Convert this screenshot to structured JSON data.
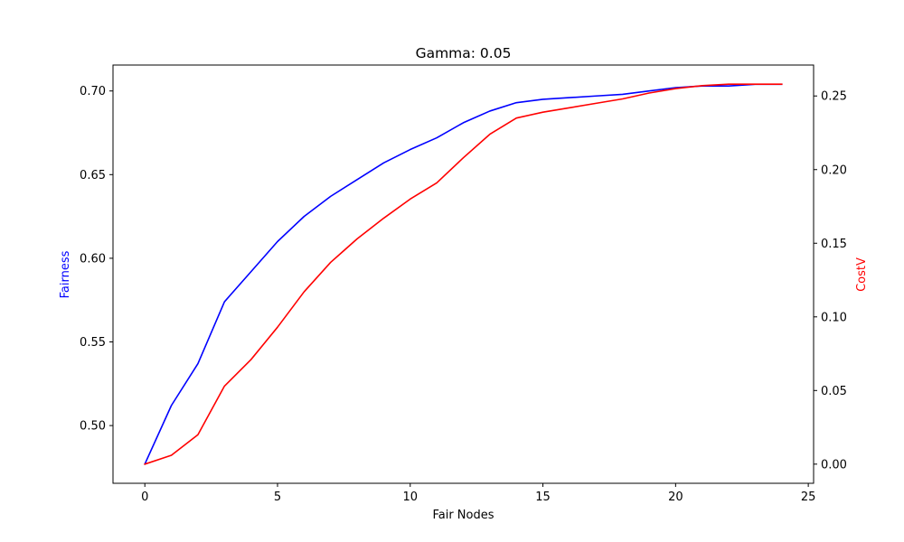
{
  "chart_data": {
    "type": "line",
    "title": "Gamma: 0.05",
    "xlabel": "Fair Nodes",
    "ylabel_left": "Fairness",
    "ylabel_right": "CostV",
    "xlim": [
      -1.2,
      25.2
    ],
    "ylim_left": [
      0.4655,
      0.7155
    ],
    "ylim_right": [
      -0.013,
      0.271
    ],
    "x_ticks": [
      0,
      5,
      10,
      15,
      20,
      25
    ],
    "y_ticks_left": [
      0.5,
      0.55,
      0.6,
      0.65,
      0.7
    ],
    "y_ticks_right": [
      0.0,
      0.05,
      0.1,
      0.15,
      0.2,
      0.25
    ],
    "x_tick_labels": [
      "0",
      "5",
      "10",
      "15",
      "20",
      "25"
    ],
    "y_tick_labels_left": [
      "0.50",
      "0.55",
      "0.60",
      "0.65",
      "0.70"
    ],
    "y_tick_labels_right": [
      "0.00",
      "0.05",
      "0.10",
      "0.15",
      "0.20",
      "0.25"
    ],
    "grid": false,
    "x": [
      0,
      1,
      2,
      3,
      4,
      5,
      6,
      7,
      8,
      9,
      10,
      11,
      12,
      13,
      14,
      15,
      16,
      17,
      18,
      19,
      20,
      21,
      22,
      23,
      24
    ],
    "series": [
      {
        "name": "Fairness",
        "axis": "left",
        "color": "#0000ff",
        "values": [
          0.477,
          0.512,
          0.537,
          0.574,
          0.592,
          0.61,
          0.625,
          0.637,
          0.647,
          0.657,
          0.665,
          0.672,
          0.681,
          0.688,
          0.693,
          0.695,
          0.696,
          0.697,
          0.698,
          0.7,
          0.702,
          0.703,
          0.703,
          0.704,
          0.704
        ]
      },
      {
        "name": "CostV",
        "axis": "right",
        "color": "#ff0000",
        "values": [
          0.0,
          0.006,
          0.02,
          0.053,
          0.071,
          0.093,
          0.117,
          0.137,
          0.153,
          0.167,
          0.18,
          0.191,
          0.208,
          0.224,
          0.235,
          0.239,
          0.242,
          0.245,
          0.248,
          0.252,
          0.255,
          0.257,
          0.258,
          0.258,
          0.258
        ]
      }
    ]
  }
}
